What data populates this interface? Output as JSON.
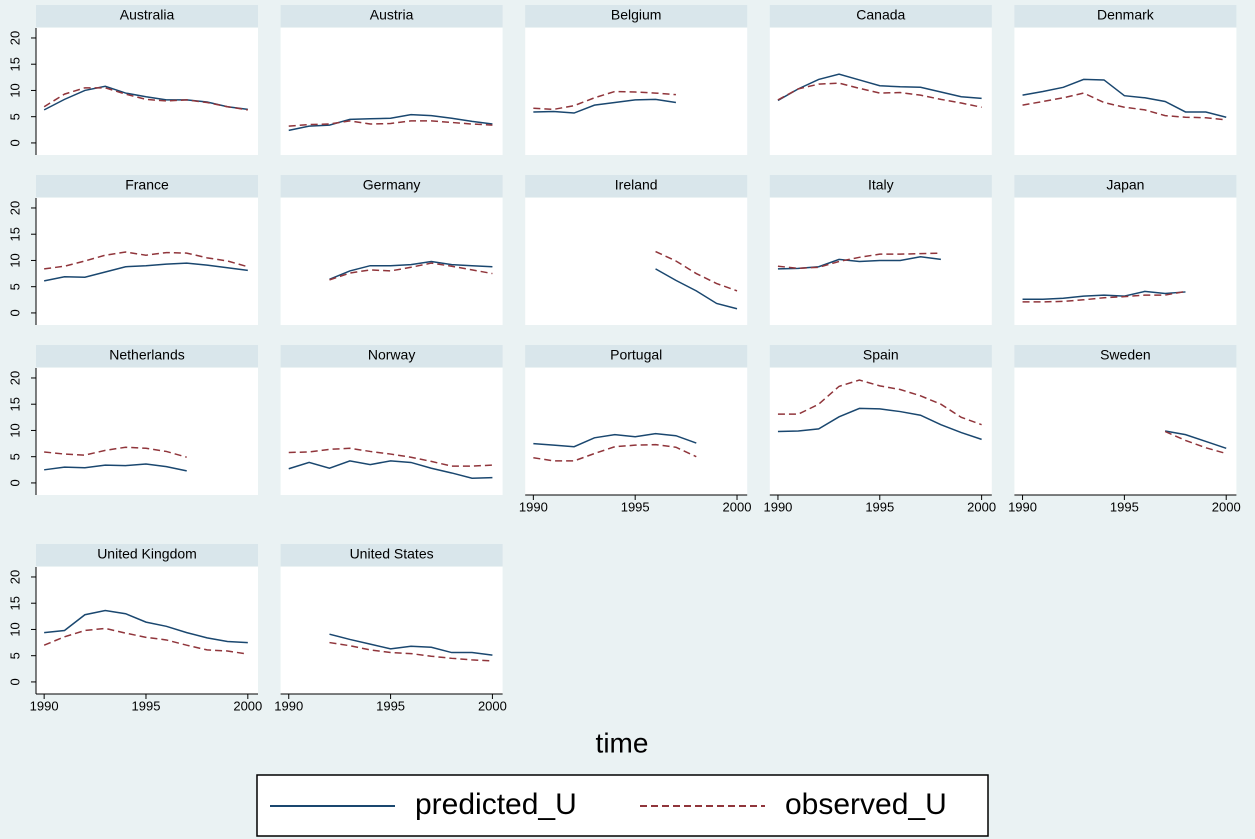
{
  "axis_title": "time",
  "chart_data": [
    {
      "type": "line",
      "title": "Australia",
      "x": [
        1990,
        1991,
        1992,
        1993,
        1994,
        1995,
        1996,
        1997,
        1998,
        1999,
        2000
      ],
      "xlim": [
        1989.6,
        2000.5
      ],
      "ylim": [
        -2.3,
        21.9
      ],
      "yticks": [
        0,
        5,
        10,
        15,
        20
      ],
      "series": [
        {
          "name": "predicted_U",
          "color": "#1a476f",
          "style": "solid",
          "values": [
            6.3,
            8.3,
            10,
            10.8,
            9.5,
            8.8,
            8.2,
            8.2,
            7.8,
            6.9,
            6.4
          ]
        },
        {
          "name": "observed_U",
          "color": "#90353b",
          "style": "dashed",
          "values": [
            6.9,
            9.3,
            10.5,
            10.5,
            9.3,
            8.3,
            8.0,
            8.2,
            7.7,
            6.9,
            6.3
          ]
        }
      ]
    },
    {
      "type": "line",
      "title": "Austria",
      "x": [
        1990,
        1991,
        1992,
        1993,
        1994,
        1995,
        1996,
        1997,
        1998,
        1999,
        2000
      ],
      "xlim": [
        1989.6,
        2000.5
      ],
      "ylim": [
        -2.3,
        21.9
      ],
      "series": [
        {
          "name": "predicted_U",
          "color": "#1a476f",
          "style": "solid",
          "values": [
            2.4,
            3.2,
            3.4,
            4.5,
            4.6,
            4.7,
            5.4,
            5.2,
            4.7,
            4.1,
            3.6
          ]
        },
        {
          "name": "observed_U",
          "color": "#90353b",
          "style": "dashed",
          "values": [
            3.2,
            3.5,
            3.6,
            4.2,
            3.6,
            3.7,
            4.2,
            4.2,
            3.9,
            3.6,
            3.4
          ]
        }
      ]
    },
    {
      "type": "line",
      "title": "Belgium",
      "x": [
        1990,
        1991,
        1992,
        1993,
        1994,
        1995,
        1996,
        1997
      ],
      "xlim": [
        1989.6,
        2000.5
      ],
      "ylim": [
        -2.3,
        21.9
      ],
      "series": [
        {
          "name": "predicted_U",
          "color": "#1a476f",
          "style": "solid",
          "values": [
            5.9,
            6.0,
            5.7,
            7.2,
            7.7,
            8.2,
            8.3,
            7.7
          ]
        },
        {
          "name": "observed_U",
          "color": "#90353b",
          "style": "dashed",
          "values": [
            6.6,
            6.4,
            7.1,
            8.6,
            9.8,
            9.7,
            9.5,
            9.2
          ]
        }
      ]
    },
    {
      "type": "line",
      "title": "Canada",
      "x": [
        1990,
        1991,
        1992,
        1993,
        1994,
        1995,
        1996,
        1997,
        1998,
        1999,
        2000
      ],
      "xlim": [
        1989.6,
        2000.5
      ],
      "ylim": [
        -2.3,
        21.9
      ],
      "series": [
        {
          "name": "predicted_U",
          "color": "#1a476f",
          "style": "solid",
          "values": [
            8.1,
            10.3,
            12.1,
            13.1,
            12.0,
            10.9,
            10.7,
            10.6,
            9.7,
            8.8,
            8.5
          ]
        },
        {
          "name": "observed_U",
          "color": "#90353b",
          "style": "dashed",
          "values": [
            8.2,
            10.3,
            11.2,
            11.4,
            10.4,
            9.5,
            9.6,
            9.1,
            8.3,
            7.6,
            6.8
          ]
        }
      ]
    },
    {
      "type": "line",
      "title": "Denmark",
      "x": [
        1990,
        1991,
        1992,
        1993,
        1994,
        1995,
        1996,
        1997,
        1998,
        1999,
        2000
      ],
      "xlim": [
        1989.6,
        2000.5
      ],
      "ylim": [
        -2.3,
        21.9
      ],
      "series": [
        {
          "name": "predicted_U",
          "color": "#1a476f",
          "style": "solid",
          "values": [
            9.1,
            9.8,
            10.6,
            12.1,
            12.0,
            9.0,
            8.6,
            7.9,
            5.9,
            5.9,
            4.9
          ]
        },
        {
          "name": "observed_U",
          "color": "#90353b",
          "style": "dashed",
          "values": [
            7.2,
            7.9,
            8.6,
            9.5,
            7.7,
            6.8,
            6.3,
            5.2,
            4.9,
            4.8,
            4.4
          ]
        }
      ]
    },
    {
      "type": "line",
      "title": "France",
      "x": [
        1990,
        1991,
        1992,
        1993,
        1994,
        1995,
        1996,
        1997,
        1998,
        1999,
        2000
      ],
      "xlim": [
        1989.6,
        2000.5
      ],
      "ylim": [
        -2.3,
        21.9
      ],
      "yticks": [
        0,
        5,
        10,
        15,
        20
      ],
      "series": [
        {
          "name": "predicted_U",
          "color": "#1a476f",
          "style": "solid",
          "values": [
            6.1,
            6.9,
            6.8,
            7.8,
            8.8,
            9.0,
            9.3,
            9.5,
            9.1,
            8.6,
            8.1
          ]
        },
        {
          "name": "observed_U",
          "color": "#90353b",
          "style": "dashed",
          "values": [
            8.4,
            8.9,
            9.9,
            11.0,
            11.6,
            11.0,
            11.5,
            11.4,
            10.5,
            9.9,
            8.8
          ]
        }
      ]
    },
    {
      "type": "line",
      "title": "Germany",
      "x": [
        1992,
        1993,
        1994,
        1995,
        1996,
        1997,
        1998,
        1999,
        2000
      ],
      "xlim": [
        1989.6,
        2000.5
      ],
      "ylim": [
        -2.3,
        21.9
      ],
      "series": [
        {
          "name": "predicted_U",
          "color": "#1a476f",
          "style": "solid",
          "values": [
            6.4,
            8.0,
            9.0,
            9.0,
            9.2,
            9.8,
            9.2,
            9.0,
            8.8
          ]
        },
        {
          "name": "observed_U",
          "color": "#90353b",
          "style": "dashed",
          "values": [
            6.3,
            7.6,
            8.2,
            8.0,
            8.7,
            9.5,
            8.9,
            8.2,
            7.5
          ]
        }
      ]
    },
    {
      "type": "line",
      "title": "Ireland",
      "x": [
        1996,
        1997,
        1998,
        1999,
        2000
      ],
      "xlim": [
        1989.6,
        2000.5
      ],
      "ylim": [
        -2.3,
        21.9
      ],
      "series": [
        {
          "name": "predicted_U",
          "color": "#1a476f",
          "style": "solid",
          "values": [
            8.4,
            6.2,
            4.2,
            1.8,
            0.8
          ]
        },
        {
          "name": "observed_U",
          "color": "#90353b",
          "style": "dashed",
          "values": [
            11.7,
            9.9,
            7.5,
            5.6,
            4.2
          ]
        }
      ]
    },
    {
      "type": "line",
      "title": "Italy",
      "x": [
        1990,
        1991,
        1992,
        1993,
        1994,
        1995,
        1996,
        1997,
        1998
      ],
      "xlim": [
        1989.6,
        2000.5
      ],
      "ylim": [
        -2.3,
        21.9
      ],
      "series": [
        {
          "name": "predicted_U",
          "color": "#1a476f",
          "style": "solid",
          "values": [
            8.4,
            8.5,
            8.8,
            10.2,
            9.8,
            10.0,
            10.0,
            10.7,
            10.2
          ]
        },
        {
          "name": "observed_U",
          "color": "#90353b",
          "style": "dashed",
          "values": [
            8.9,
            8.5,
            8.7,
            9.8,
            10.6,
            11.2,
            11.2,
            11.3,
            11.4
          ]
        }
      ]
    },
    {
      "type": "line",
      "title": "Japan",
      "x": [
        1990,
        1991,
        1992,
        1993,
        1994,
        1995,
        1996,
        1997,
        1998
      ],
      "xlim": [
        1989.6,
        2000.5
      ],
      "ylim": [
        -2.3,
        21.9
      ],
      "series": [
        {
          "name": "predicted_U",
          "color": "#1a476f",
          "style": "solid",
          "values": [
            2.6,
            2.6,
            2.8,
            3.2,
            3.4,
            3.2,
            4.1,
            3.7,
            4.0
          ]
        },
        {
          "name": "observed_U",
          "color": "#90353b",
          "style": "dashed",
          "values": [
            2.1,
            2.1,
            2.2,
            2.5,
            2.9,
            3.1,
            3.4,
            3.4,
            4.1
          ]
        }
      ]
    },
    {
      "type": "line",
      "title": "Netherlands",
      "x": [
        1990,
        1991,
        1992,
        1993,
        1994,
        1995,
        1996,
        1997
      ],
      "xlim": [
        1989.6,
        2000.5
      ],
      "ylim": [
        -2.3,
        21.9
      ],
      "yticks": [
        0,
        5,
        10,
        15,
        20
      ],
      "series": [
        {
          "name": "predicted_U",
          "color": "#1a476f",
          "style": "solid",
          "values": [
            2.5,
            3.0,
            2.9,
            3.4,
            3.3,
            3.6,
            3.1,
            2.3
          ]
        },
        {
          "name": "observed_U",
          "color": "#90353b",
          "style": "dashed",
          "values": [
            5.9,
            5.5,
            5.3,
            6.2,
            6.8,
            6.6,
            6.0,
            4.9
          ]
        }
      ]
    },
    {
      "type": "line",
      "title": "Norway",
      "x": [
        1990,
        1991,
        1992,
        1993,
        1994,
        1995,
        1996,
        1997,
        1998,
        1999,
        2000
      ],
      "xlim": [
        1989.6,
        2000.5
      ],
      "ylim": [
        -2.3,
        21.9
      ],
      "series": [
        {
          "name": "predicted_U",
          "color": "#1a476f",
          "style": "solid",
          "values": [
            2.7,
            3.9,
            2.8,
            4.2,
            3.5,
            4.2,
            3.9,
            2.8,
            1.9,
            0.9,
            1.0
          ]
        },
        {
          "name": "observed_U",
          "color": "#90353b",
          "style": "dashed",
          "values": [
            5.8,
            5.9,
            6.4,
            6.6,
            6.0,
            5.5,
            4.9,
            4.1,
            3.2,
            3.2,
            3.4
          ]
        }
      ]
    },
    {
      "type": "line",
      "title": "Portugal",
      "x": [
        1990,
        1991,
        1992,
        1993,
        1994,
        1995,
        1996,
        1997,
        1998
      ],
      "xlim": [
        1989.6,
        2000.5
      ],
      "ylim": [
        -2.3,
        21.9
      ],
      "xticks": [
        1990,
        1995,
        2000
      ],
      "series": [
        {
          "name": "predicted_U",
          "color": "#1a476f",
          "style": "solid",
          "values": [
            7.5,
            7.2,
            6.9,
            8.6,
            9.2,
            8.8,
            9.4,
            9.0,
            7.6
          ]
        },
        {
          "name": "observed_U",
          "color": "#90353b",
          "style": "dashed",
          "values": [
            4.8,
            4.2,
            4.2,
            5.6,
            6.9,
            7.2,
            7.3,
            6.8,
            5.0
          ]
        }
      ]
    },
    {
      "type": "line",
      "title": "Spain",
      "x": [
        1990,
        1991,
        1992,
        1993,
        1994,
        1995,
        1996,
        1997,
        1998,
        1999,
        2000
      ],
      "xlim": [
        1989.6,
        2000.5
      ],
      "ylim": [
        -2.3,
        21.9
      ],
      "xticks": [
        1990,
        1995,
        2000
      ],
      "series": [
        {
          "name": "predicted_U",
          "color": "#1a476f",
          "style": "solid",
          "values": [
            9.8,
            9.9,
            10.3,
            12.6,
            14.2,
            14.1,
            13.6,
            12.9,
            11.1,
            9.6,
            8.3
          ]
        },
        {
          "name": "observed_U",
          "color": "#90353b",
          "style": "dashed",
          "values": [
            13.1,
            13.1,
            15.0,
            18.4,
            19.6,
            18.5,
            17.8,
            16.6,
            15.0,
            12.5,
            11.1
          ]
        }
      ]
    },
    {
      "type": "line",
      "title": "Sweden",
      "x": [
        1997,
        1998,
        1999,
        2000
      ],
      "xlim": [
        1989.6,
        2000.5
      ],
      "ylim": [
        -2.3,
        21.9
      ],
      "xticks": [
        1990,
        1995,
        2000
      ],
      "series": [
        {
          "name": "predicted_U",
          "color": "#1a476f",
          "style": "solid",
          "values": [
            9.9,
            9.2,
            7.9,
            6.6
          ]
        },
        {
          "name": "observed_U",
          "color": "#90353b",
          "style": "dashed",
          "values": [
            9.8,
            8.1,
            6.7,
            5.6
          ]
        }
      ]
    },
    {
      "type": "line",
      "title": "United Kingdom",
      "x": [
        1990,
        1991,
        1992,
        1993,
        1994,
        1995,
        1996,
        1997,
        1998,
        1999,
        2000
      ],
      "xlim": [
        1989.6,
        2000.5
      ],
      "ylim": [
        -2.3,
        21.9
      ],
      "yticks": [
        0,
        5,
        10,
        15,
        20
      ],
      "xticks": [
        1990,
        1995,
        2000
      ],
      "series": [
        {
          "name": "predicted_U",
          "color": "#1a476f",
          "style": "solid",
          "values": [
            9.4,
            9.8,
            12.8,
            13.6,
            13.0,
            11.4,
            10.6,
            9.4,
            8.4,
            7.7,
            7.5
          ]
        },
        {
          "name": "observed_U",
          "color": "#90353b",
          "style": "dashed",
          "values": [
            7.0,
            8.6,
            9.8,
            10.2,
            9.3,
            8.5,
            8.0,
            7.0,
            6.1,
            5.9,
            5.3
          ]
        }
      ]
    },
    {
      "type": "line",
      "title": "United States",
      "x": [
        1992,
        1993,
        1994,
        1995,
        1996,
        1997,
        1998,
        1999,
        2000
      ],
      "xlim": [
        1989.6,
        2000.5
      ],
      "ylim": [
        -2.3,
        21.9
      ],
      "xticks": [
        1990,
        1995,
        2000
      ],
      "series": [
        {
          "name": "predicted_U",
          "color": "#1a476f",
          "style": "solid",
          "values": [
            9.1,
            8.1,
            7.2,
            6.3,
            6.8,
            6.6,
            5.6,
            5.6,
            5.1
          ]
        },
        {
          "name": "observed_U",
          "color": "#90353b",
          "style": "dashed",
          "values": [
            7.5,
            6.9,
            6.1,
            5.6,
            5.4,
            4.9,
            4.5,
            4.2,
            4.0
          ]
        }
      ]
    }
  ]
}
